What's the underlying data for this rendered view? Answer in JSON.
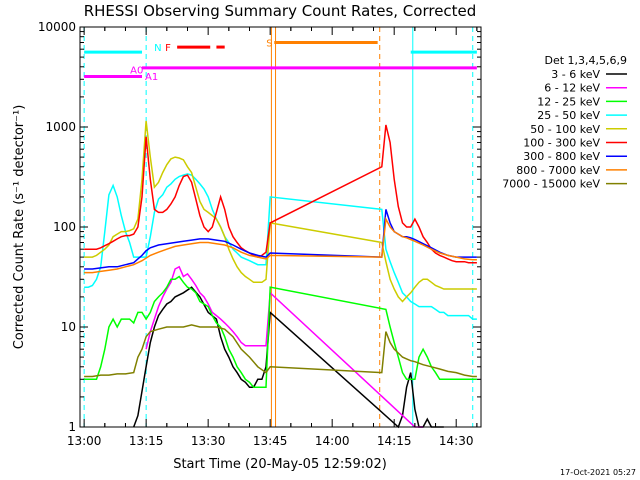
{
  "chart_data": {
    "type": "line",
    "title": "RHESSI Observing Summary Count Rates, Corrected",
    "xlabel": "Start Time (20-May-05 12:59:02)",
    "ylabel": "Corrected Count Rate (s⁻¹ detector⁻¹)",
    "yscale": "log",
    "ylim": [
      1,
      10000
    ],
    "xlim_minutes": [
      -1,
      96
    ],
    "x_ticks": [
      "13:00",
      "13:15",
      "13:30",
      "13:45",
      "14:00",
      "14:15",
      "14:30"
    ],
    "y_ticks": [
      "1",
      "10",
      "100",
      "1000",
      "10000"
    ],
    "legend_header": "Det 1,3,4,5,6,9",
    "legend_position": "right",
    "timestamp": "17-Oct-2021 05:27",
    "series": [
      {
        "name": "3 - 6 keV",
        "color": "#000000",
        "x": [
          12,
          13,
          15,
          16,
          17,
          18,
          19,
          20,
          21,
          22,
          24,
          26,
          28,
          30,
          32,
          33,
          34,
          35,
          36,
          37,
          38,
          39,
          40,
          41,
          42,
          43,
          44,
          45,
          76,
          77,
          78,
          79,
          80,
          81,
          82,
          83,
          84,
          85,
          86,
          87
        ],
        "y": [
          1,
          1.3,
          4,
          7,
          10,
          13,
          15,
          17,
          18,
          20,
          22,
          25,
          20,
          14,
          12,
          8,
          6,
          5,
          4,
          3.5,
          3,
          2.8,
          2.5,
          2.5,
          3,
          3,
          4,
          14,
          1,
          1.3,
          2.5,
          3.5,
          1.5,
          1,
          1,
          1.2,
          1,
          1,
          1,
          1
        ]
      },
      {
        "name": "6 - 12 keV",
        "color": "#ff00ff",
        "x": [
          15,
          16,
          17,
          18,
          19,
          20,
          21,
          22,
          23,
          24,
          25,
          26,
          27,
          28,
          29,
          30,
          31,
          32,
          33,
          34,
          35,
          36,
          37,
          38,
          39,
          40,
          41,
          42,
          43,
          44,
          45,
          80,
          81,
          82
        ],
        "y": [
          6,
          9,
          12,
          16,
          20,
          24,
          28,
          38,
          40,
          32,
          34,
          30,
          26,
          22,
          20,
          17,
          14,
          13,
          12,
          11,
          10,
          9,
          8,
          7,
          6.5,
          6.5,
          6.5,
          6.5,
          6.5,
          6.5,
          22,
          1,
          1,
          1
        ]
      },
      {
        "name": "12 - 25 keV",
        "color": "#00ff00",
        "x": [
          0,
          1,
          2,
          3,
          4,
          5,
          6,
          7,
          8,
          9,
          10,
          11,
          12,
          13,
          14,
          15,
          16,
          17,
          18,
          19,
          20,
          21,
          22,
          23,
          24,
          25,
          26,
          27,
          28,
          29,
          30,
          31,
          32,
          33,
          34,
          35,
          36,
          37,
          38,
          39,
          40,
          41,
          42,
          43,
          44,
          45,
          73,
          74,
          75,
          76,
          77,
          78,
          79,
          80,
          81,
          82,
          83,
          84,
          85,
          86,
          87,
          88,
          89,
          90,
          91,
          92,
          93,
          94,
          95
        ],
        "y": [
          3,
          3,
          3,
          3,
          4,
          6,
          10,
          12,
          10,
          12,
          12,
          12,
          11,
          14,
          14,
          12,
          14,
          18,
          20,
          22,
          25,
          30,
          30,
          32,
          28,
          25,
          24,
          22,
          18,
          17,
          16,
          13,
          11,
          10,
          8,
          6,
          5,
          4,
          3.5,
          3,
          2.8,
          2.5,
          2.5,
          2.5,
          2.5,
          25,
          15,
          10,
          7,
          5,
          3.5,
          3,
          3,
          3,
          5,
          6,
          5,
          4,
          3.5,
          3,
          3,
          3,
          3,
          3,
          3,
          3,
          3,
          3,
          3
        ]
      },
      {
        "name": "25 - 50 keV",
        "color": "#00ffff",
        "x": [
          0,
          1,
          2,
          3,
          4,
          5,
          6,
          7,
          8,
          9,
          10,
          11,
          12,
          13,
          14,
          15,
          16,
          17,
          18,
          19,
          20,
          21,
          22,
          23,
          24,
          25,
          26,
          27,
          28,
          29,
          30,
          31,
          32,
          33,
          34,
          35,
          36,
          37,
          38,
          39,
          40,
          41,
          42,
          43,
          44,
          45,
          72,
          73,
          74,
          75,
          76,
          77,
          78,
          79,
          80,
          81,
          82,
          83,
          84,
          85,
          86,
          87,
          88,
          89,
          90,
          91,
          92,
          93,
          94,
          95
        ],
        "y": [
          25,
          25,
          26,
          30,
          40,
          90,
          210,
          260,
          200,
          130,
          90,
          70,
          50,
          50,
          50,
          50,
          80,
          140,
          190,
          210,
          250,
          270,
          300,
          320,
          330,
          340,
          330,
          300,
          270,
          240,
          200,
          150,
          120,
          100,
          80,
          70,
          60,
          55,
          50,
          48,
          46,
          44,
          42,
          42,
          42,
          200,
          150,
          60,
          45,
          35,
          28,
          22,
          20,
          18,
          17,
          16,
          16,
          16,
          16,
          15,
          14,
          14,
          13,
          13,
          13,
          13,
          13,
          13,
          12,
          12
        ]
      },
      {
        "name": "50 - 100 keV",
        "color": "#cccc00",
        "x": [
          0,
          1,
          2,
          3,
          4,
          5,
          6,
          7,
          8,
          9,
          10,
          11,
          12,
          13,
          14,
          15,
          16,
          17,
          18,
          19,
          20,
          21,
          22,
          23,
          24,
          25,
          26,
          27,
          28,
          29,
          30,
          31,
          32,
          33,
          34,
          35,
          36,
          37,
          38,
          39,
          40,
          41,
          42,
          43,
          44,
          45,
          72,
          73,
          74,
          75,
          76,
          77,
          78,
          79,
          80,
          81,
          82,
          83,
          84,
          85,
          86,
          87,
          88,
          89,
          90,
          91,
          92,
          93,
          94,
          95
        ],
        "y": [
          50,
          50,
          50,
          52,
          56,
          60,
          66,
          80,
          85,
          90,
          90,
          92,
          96,
          120,
          300,
          1150,
          500,
          250,
          280,
          350,
          420,
          480,
          500,
          490,
          470,
          400,
          350,
          250,
          180,
          150,
          140,
          130,
          120,
          100,
          80,
          60,
          48,
          40,
          35,
          32,
          30,
          28,
          28,
          28,
          30,
          110,
          70,
          45,
          30,
          24,
          20,
          18,
          20,
          22,
          25,
          28,
          30,
          30,
          28,
          26,
          25,
          24,
          24,
          24,
          24,
          24,
          24,
          24,
          24,
          24
        ]
      },
      {
        "name": "100 - 300 keV",
        "color": "#ff0000",
        "x": [
          0,
          1,
          2,
          3,
          4,
          5,
          6,
          7,
          8,
          9,
          10,
          11,
          12,
          13,
          14,
          15,
          16,
          17,
          18,
          19,
          20,
          21,
          22,
          23,
          24,
          25,
          26,
          27,
          28,
          29,
          30,
          31,
          32,
          33,
          34,
          35,
          36,
          37,
          38,
          39,
          40,
          41,
          42,
          43,
          44,
          45,
          72,
          73,
          74,
          75,
          76,
          77,
          78,
          79,
          80,
          81,
          82,
          83,
          84,
          85,
          86,
          87,
          88,
          89,
          90,
          91,
          92,
          93,
          94,
          95
        ],
        "y": [
          60,
          60,
          60,
          60,
          62,
          65,
          68,
          72,
          76,
          80,
          82,
          82,
          85,
          100,
          200,
          800,
          300,
          150,
          140,
          140,
          150,
          170,
          200,
          260,
          320,
          330,
          280,
          190,
          130,
          100,
          90,
          100,
          140,
          200,
          150,
          100,
          80,
          70,
          62,
          58,
          55,
          52,
          50,
          52,
          56,
          110,
          400,
          1050,
          700,
          300,
          160,
          110,
          100,
          100,
          120,
          100,
          80,
          70,
          60,
          55,
          52,
          50,
          48,
          46,
          45,
          45,
          45,
          44,
          44,
          44
        ]
      },
      {
        "name": "300 - 800 keV",
        "color": "#0000ff",
        "x": [
          0,
          2,
          4,
          6,
          8,
          10,
          12,
          13,
          14,
          15,
          16,
          18,
          20,
          22,
          24,
          26,
          28,
          30,
          32,
          34,
          36,
          38,
          40,
          42,
          44,
          45,
          72,
          73,
          74,
          75,
          76,
          77,
          78,
          79,
          80,
          82,
          84,
          86,
          88,
          90,
          92,
          94,
          95
        ],
        "y": [
          38,
          38,
          39,
          40,
          40,
          42,
          44,
          48,
          52,
          58,
          62,
          66,
          68,
          70,
          72,
          74,
          76,
          76,
          74,
          72,
          66,
          60,
          55,
          52,
          50,
          55,
          50,
          150,
          110,
          90,
          85,
          80,
          80,
          78,
          75,
          68,
          62,
          56,
          52,
          50,
          50,
          50,
          50
        ]
      },
      {
        "name": "800 - 7000 keV",
        "color": "#ff8000",
        "x": [
          0,
          2,
          4,
          6,
          8,
          10,
          12,
          14,
          16,
          18,
          20,
          22,
          24,
          26,
          28,
          30,
          32,
          34,
          36,
          38,
          40,
          42,
          44,
          45,
          72,
          73,
          74,
          75,
          76,
          77,
          78,
          79,
          80,
          82,
          84,
          86,
          88,
          90,
          92,
          94,
          95
        ],
        "y": [
          35,
          35,
          36,
          37,
          38,
          40,
          42,
          46,
          52,
          56,
          60,
          64,
          66,
          68,
          70,
          70,
          68,
          66,
          62,
          56,
          52,
          50,
          48,
          52,
          50,
          120,
          100,
          90,
          85,
          80,
          78,
          75,
          72,
          66,
          60,
          55,
          52,
          50,
          48,
          47,
          47
        ]
      },
      {
        "name": "7000 - 15000 keV",
        "color": "#808000",
        "x": [
          0,
          2,
          4,
          6,
          8,
          10,
          12,
          13,
          14,
          15,
          16,
          18,
          20,
          22,
          24,
          26,
          28,
          30,
          32,
          34,
          36,
          38,
          40,
          42,
          44,
          45,
          72,
          73,
          74,
          75,
          76,
          77,
          78,
          79,
          80,
          82,
          84,
          86,
          88,
          90,
          92,
          94,
          95
        ],
        "y": [
          3.2,
          3.2,
          3.3,
          3.3,
          3.4,
          3.4,
          3.5,
          5,
          6,
          8,
          9,
          9.5,
          10,
          10,
          10,
          10.5,
          10,
          10,
          10,
          9.5,
          8,
          6,
          5,
          4,
          3.5,
          4,
          3.5,
          9,
          7,
          6,
          5.5,
          5,
          4.8,
          4.6,
          4.5,
          4.2,
          4,
          3.8,
          3.6,
          3.5,
          3.3,
          3.2,
          3.2
        ]
      }
    ],
    "flag_bars": [
      {
        "label": "N",
        "color": "#00ffff",
        "ranges": [
          [
            0,
            14
          ],
          [
            79,
            95
          ]
        ],
        "y": 5600
      },
      {
        "label": "A0",
        "color": "#ff00ff",
        "ranges": [
          [
            0,
            14
          ]
        ],
        "y": 3200
      },
      {
        "label": "A1",
        "color": "#ff00ff",
        "ranges": [
          [
            14,
            95
          ]
        ],
        "y": 3900
      },
      {
        "label": "F",
        "color": "#ff0000",
        "ranges": [
          [
            22.5,
            30.5
          ],
          [
            32,
            34
          ]
        ],
        "y": 6300
      },
      {
        "label": "S",
        "color": "#ff8000",
        "ranges": [
          [
            46,
            71
          ]
        ],
        "y": 7000
      }
    ],
    "vertical_markers": [
      {
        "x": 0,
        "color": "#00ffff",
        "style": "dashed"
      },
      {
        "x": 15,
        "color": "#00ffff",
        "style": "dashed"
      },
      {
        "x": 79.5,
        "color": "#00ffff",
        "style": "solid"
      },
      {
        "x": 94,
        "color": "#00ffff",
        "style": "dashed"
      },
      {
        "x": 45.3,
        "color": "#ff8000",
        "style": "solid"
      },
      {
        "x": 46.3,
        "color": "#ff8000",
        "style": "solid"
      },
      {
        "x": 71.5,
        "color": "#ff8000",
        "style": "dashed"
      }
    ]
  }
}
